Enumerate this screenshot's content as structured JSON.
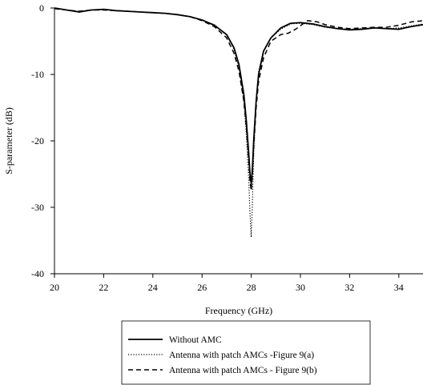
{
  "chart_data": {
    "type": "line",
    "title": "",
    "xlabel": "Frequency (GHz)",
    "ylabel": "S-parameter (dB)",
    "xlim": [
      20,
      35
    ],
    "ylim": [
      -40,
      0
    ],
    "x_ticks": [
      "20",
      "22",
      "24",
      "26",
      "28",
      "30",
      "32",
      "34"
    ],
    "y_ticks": [
      "0",
      "-10",
      "-20",
      "-30",
      "-40"
    ],
    "grid": false,
    "legend_position": "bottom",
    "series": [
      {
        "name": "Without AMC",
        "style": "solid",
        "color": "#000000",
        "points": [
          [
            20,
            0
          ],
          [
            20.5,
            -0.3
          ],
          [
            21,
            -0.6
          ],
          [
            21.5,
            -0.3
          ],
          [
            22,
            -0.2
          ],
          [
            22.5,
            -0.4
          ],
          [
            23,
            -0.5
          ],
          [
            23.5,
            -0.6
          ],
          [
            24,
            -0.7
          ],
          [
            24.5,
            -0.8
          ],
          [
            25,
            -1.0
          ],
          [
            25.5,
            -1.3
          ],
          [
            26,
            -1.8
          ],
          [
            26.5,
            -2.6
          ],
          [
            27,
            -4.0
          ],
          [
            27.3,
            -6.0
          ],
          [
            27.5,
            -8.5
          ],
          [
            27.7,
            -13
          ],
          [
            27.8,
            -17
          ],
          [
            27.9,
            -22
          ],
          [
            27.95,
            -25
          ],
          [
            28.0,
            -26.5
          ],
          [
            28.05,
            -24
          ],
          [
            28.1,
            -20
          ],
          [
            28.2,
            -14
          ],
          [
            28.3,
            -10
          ],
          [
            28.5,
            -6.5
          ],
          [
            28.8,
            -4.5
          ],
          [
            29.2,
            -3.0
          ],
          [
            29.6,
            -2.3
          ],
          [
            30,
            -2.2
          ],
          [
            30.5,
            -2.4
          ],
          [
            31,
            -2.8
          ],
          [
            31.5,
            -3.1
          ],
          [
            32,
            -3.3
          ],
          [
            32.5,
            -3.2
          ],
          [
            33,
            -3.0
          ],
          [
            33.5,
            -3.1
          ],
          [
            34,
            -3.2
          ],
          [
            34.5,
            -2.8
          ],
          [
            35,
            -2.5
          ]
        ]
      },
      {
        "name": "Antenna with patch AMCs -Figure 9(a)",
        "style": "dotted",
        "color": "#000000",
        "points": [
          [
            20,
            -0.1
          ],
          [
            20.5,
            -0.3
          ],
          [
            21,
            -0.5
          ],
          [
            21.5,
            -0.3
          ],
          [
            22,
            -0.2
          ],
          [
            22.5,
            -0.4
          ],
          [
            23,
            -0.5
          ],
          [
            23.5,
            -0.6
          ],
          [
            24,
            -0.7
          ],
          [
            24.5,
            -0.8
          ],
          [
            25,
            -1.0
          ],
          [
            25.5,
            -1.3
          ],
          [
            26,
            -1.8
          ],
          [
            26.5,
            -2.5
          ],
          [
            27,
            -4.1
          ],
          [
            27.3,
            -6.2
          ],
          [
            27.5,
            -9
          ],
          [
            27.7,
            -14
          ],
          [
            27.8,
            -19
          ],
          [
            27.9,
            -26
          ],
          [
            27.95,
            -31
          ],
          [
            28.0,
            -34.5
          ],
          [
            28.05,
            -29
          ],
          [
            28.1,
            -22
          ],
          [
            28.2,
            -14
          ],
          [
            28.3,
            -9.5
          ],
          [
            28.5,
            -6.5
          ],
          [
            28.8,
            -4.5
          ],
          [
            29.2,
            -3.2
          ],
          [
            29.6,
            -2.4
          ],
          [
            30,
            -2.3
          ],
          [
            30.5,
            -2.5
          ],
          [
            31,
            -2.9
          ],
          [
            31.5,
            -3.1
          ],
          [
            32,
            -3.2
          ],
          [
            32.5,
            -3.1
          ],
          [
            33,
            -3.0
          ],
          [
            33.5,
            -3.1
          ],
          [
            34,
            -3.0
          ],
          [
            34.5,
            -2.7
          ],
          [
            35,
            -2.4
          ]
        ]
      },
      {
        "name": "Antenna with patch AMCs - Figure 9(b)",
        "style": "dashed",
        "color": "#000000",
        "points": [
          [
            20,
            -0.1
          ],
          [
            20.5,
            -0.3
          ],
          [
            21,
            -0.5
          ],
          [
            21.5,
            -0.3
          ],
          [
            22,
            -0.3
          ],
          [
            22.5,
            -0.4
          ],
          [
            23,
            -0.5
          ],
          [
            23.5,
            -0.6
          ],
          [
            24,
            -0.7
          ],
          [
            24.5,
            -0.8
          ],
          [
            25,
            -1.0
          ],
          [
            25.5,
            -1.3
          ],
          [
            26,
            -1.9
          ],
          [
            26.5,
            -2.8
          ],
          [
            27,
            -4.5
          ],
          [
            27.3,
            -6.8
          ],
          [
            27.5,
            -9.5
          ],
          [
            27.7,
            -14
          ],
          [
            27.8,
            -18
          ],
          [
            27.9,
            -23
          ],
          [
            27.95,
            -26
          ],
          [
            28.0,
            -27.5
          ],
          [
            28.05,
            -25
          ],
          [
            28.1,
            -21
          ],
          [
            28.2,
            -15
          ],
          [
            28.3,
            -11
          ],
          [
            28.5,
            -7.5
          ],
          [
            28.8,
            -5.0
          ],
          [
            29.2,
            -4.0
          ],
          [
            29.5,
            -3.8
          ],
          [
            29.8,
            -3.2
          ],
          [
            30.1,
            -2.4
          ],
          [
            30.3,
            -1.9
          ],
          [
            30.7,
            -2.1
          ],
          [
            31,
            -2.5
          ],
          [
            31.5,
            -2.9
          ],
          [
            32,
            -3.1
          ],
          [
            32.5,
            -3.0
          ],
          [
            33,
            -2.9
          ],
          [
            33.5,
            -2.9
          ],
          [
            34,
            -2.6
          ],
          [
            34.5,
            -2.1
          ],
          [
            35,
            -1.9
          ]
        ]
      }
    ]
  }
}
